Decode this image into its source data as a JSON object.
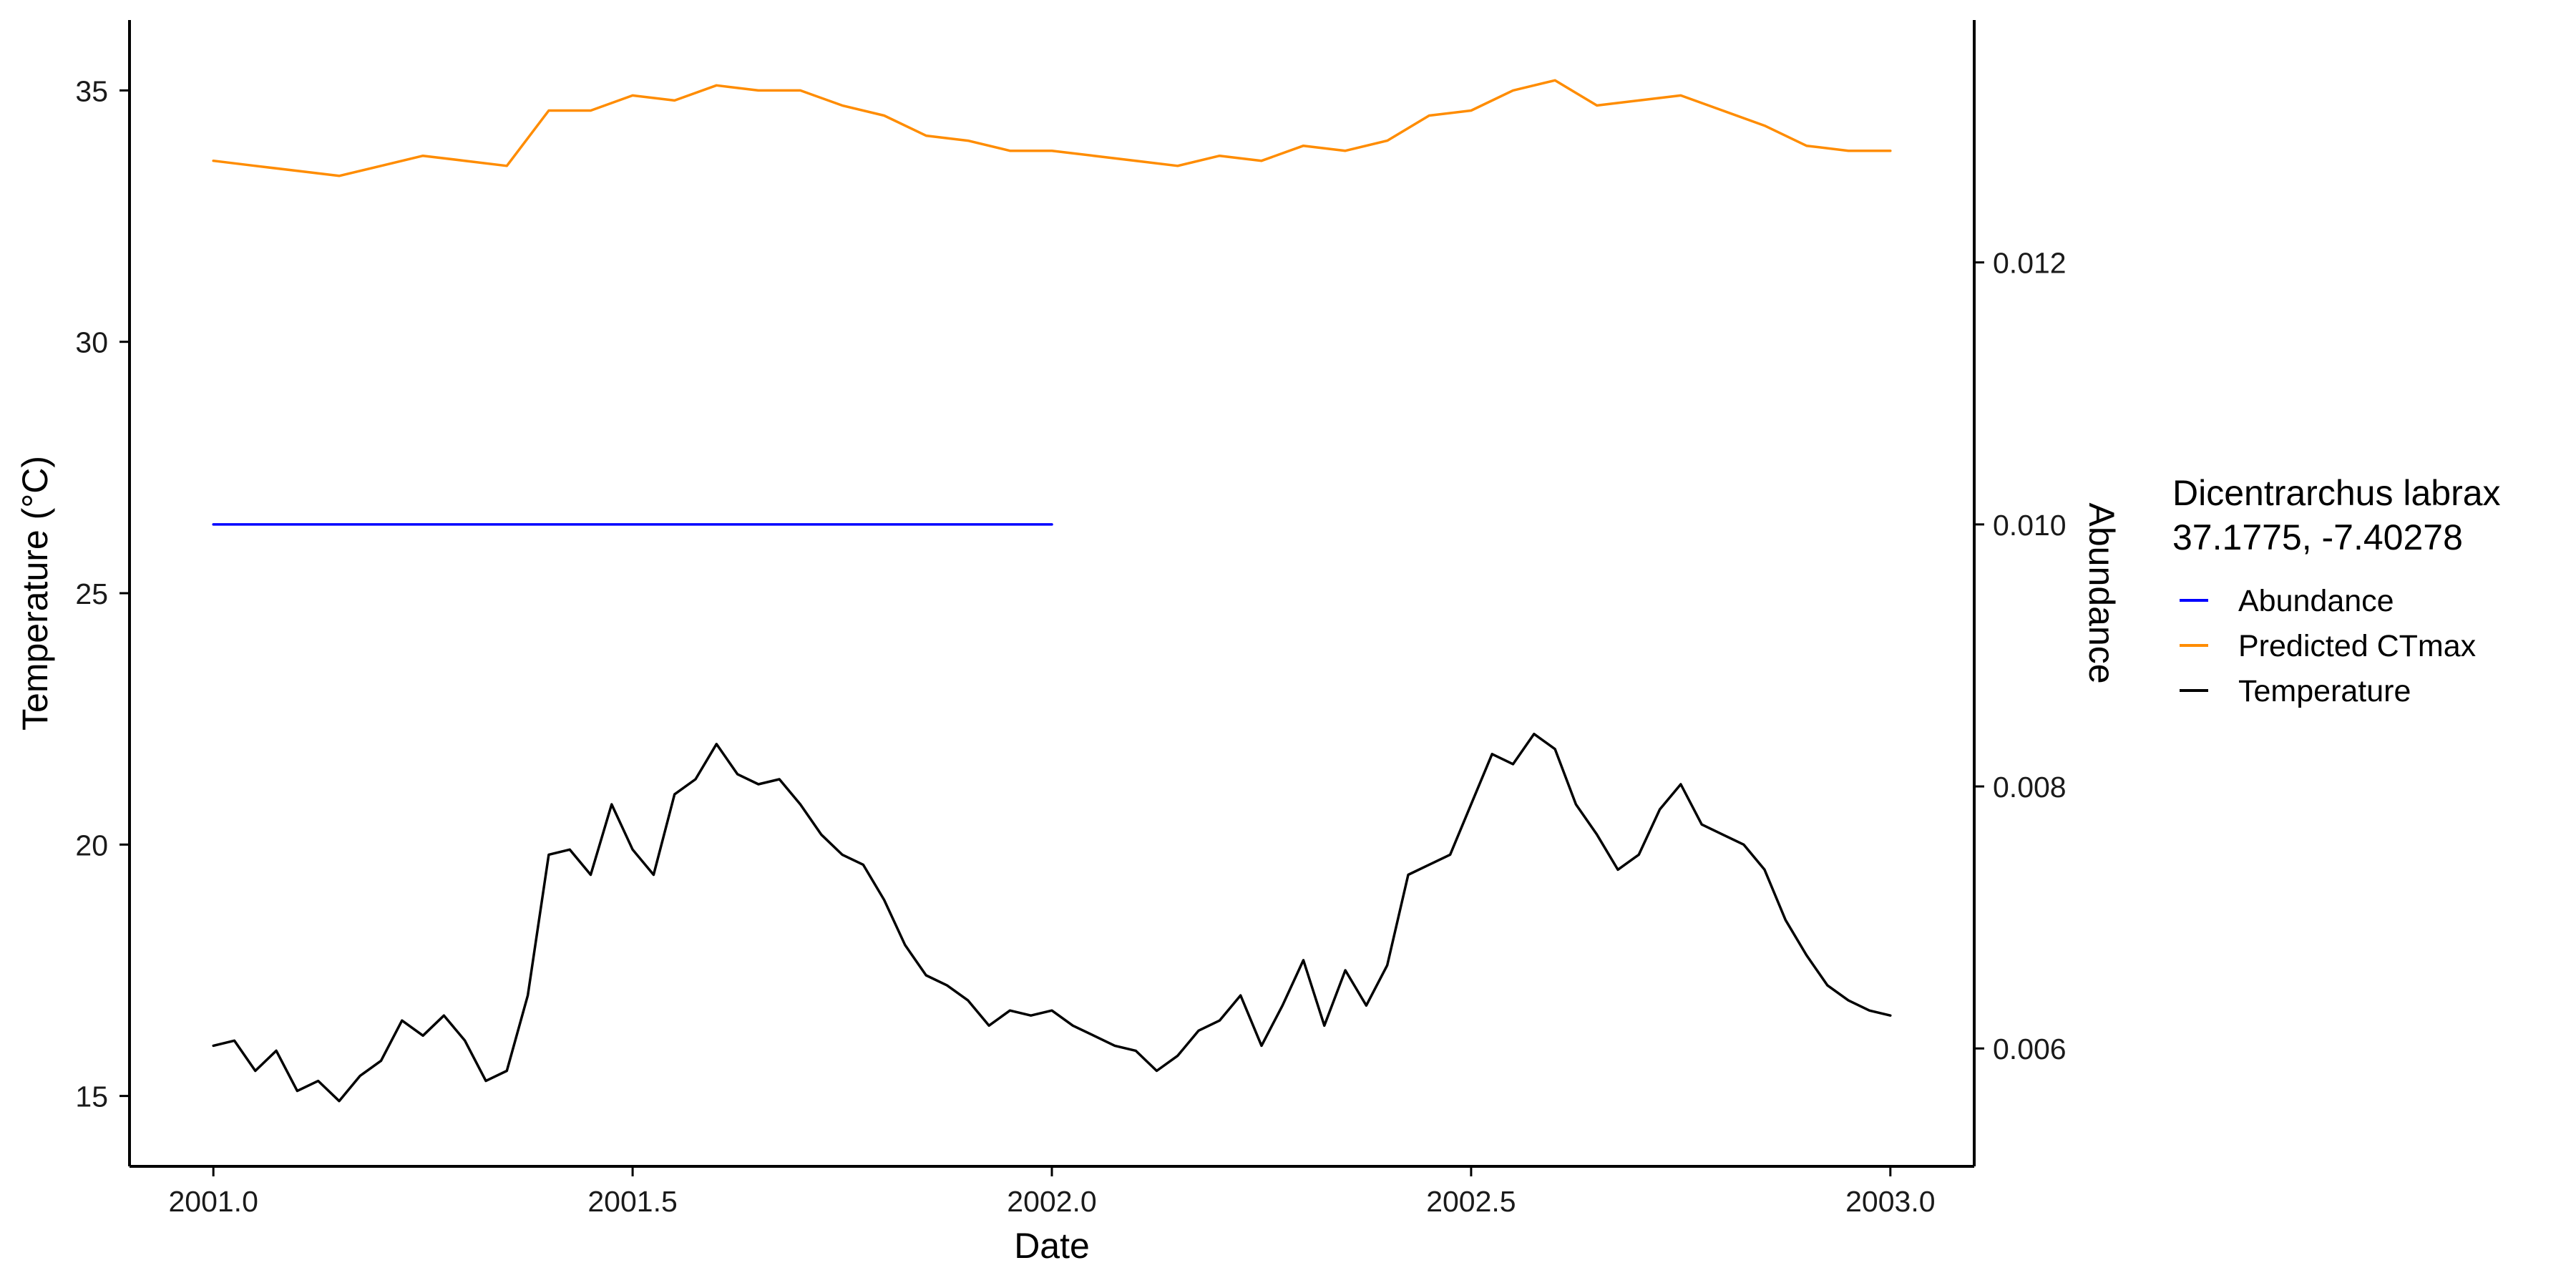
{
  "chart_data": {
    "type": "line",
    "xlabel": "Date",
    "ylabel_left": "Temperature (°C)",
    "ylabel_right": "Abundance",
    "ylabel_right_color": "#0000FF",
    "xlim": [
      2000.9,
      2003.1
    ],
    "ylim_left": [
      13.6,
      36.4
    ],
    "ylim_right": [
      0.0051,
      0.01385
    ],
    "x_ticks": [
      2001.0,
      2001.5,
      2002.0,
      2002.5,
      2003.0
    ],
    "x_tick_labels": [
      "2001.0",
      "2001.5",
      "2002.0",
      "2002.5",
      "2003.0"
    ],
    "y_left_ticks": [
      15,
      20,
      25,
      30,
      35
    ],
    "y_left_tick_labels": [
      "15",
      "20",
      "25",
      "30",
      "35"
    ],
    "y_right_ticks": [
      0.006,
      0.008,
      0.01,
      0.012
    ],
    "y_right_tick_labels": [
      "0.006",
      "0.008",
      "0.010",
      "0.012"
    ],
    "grid": false,
    "legend": {
      "title_line1": "Dicentrarchus labrax",
      "title_line2": "37.1775, -7.40278",
      "placement": "right",
      "entries": [
        {
          "label": "Abundance",
          "color": "#0000FF"
        },
        {
          "label": "Predicted CTmax",
          "color": "#FF8C00"
        },
        {
          "label": "Temperature",
          "color": "#000000"
        }
      ]
    },
    "series": [
      {
        "name": "Abundance",
        "axis": "right",
        "color": "#0000FF",
        "x": [
          2001.0,
          2002.0
        ],
        "y": [
          0.01,
          0.01
        ]
      },
      {
        "name": "Predicted CTmax",
        "axis": "left",
        "color": "#FF8C00",
        "x": [
          2001.0,
          2001.05,
          2001.1,
          2001.15,
          2001.2,
          2001.25,
          2001.3,
          2001.35,
          2001.4,
          2001.45,
          2001.5,
          2001.55,
          2001.6,
          2001.65,
          2001.7,
          2001.75,
          2001.8,
          2001.85,
          2001.9,
          2001.95,
          2002.0,
          2002.05,
          2002.1,
          2002.15,
          2002.2,
          2002.25,
          2002.3,
          2002.35,
          2002.4,
          2002.45,
          2002.5,
          2002.55,
          2002.6,
          2002.65,
          2002.7,
          2002.75,
          2002.8,
          2002.85,
          2002.9,
          2002.95,
          2003.0
        ],
        "y": [
          33.6,
          33.5,
          33.4,
          33.3,
          33.5,
          33.7,
          33.6,
          33.5,
          34.6,
          34.6,
          34.9,
          34.8,
          35.1,
          35.0,
          35.0,
          34.7,
          34.5,
          34.1,
          34.0,
          33.8,
          33.8,
          33.7,
          33.6,
          33.5,
          33.7,
          33.6,
          33.9,
          33.8,
          34.0,
          34.5,
          34.6,
          35.0,
          35.2,
          34.7,
          34.8,
          34.9,
          34.6,
          34.3,
          33.9,
          33.8,
          33.8
        ]
      },
      {
        "name": "Temperature",
        "axis": "left",
        "color": "#000000",
        "x": [
          2001.0,
          2001.025,
          2001.05,
          2001.075,
          2001.1,
          2001.125,
          2001.15,
          2001.175,
          2001.2,
          2001.225,
          2001.25,
          2001.275,
          2001.3,
          2001.325,
          2001.35,
          2001.375,
          2001.4,
          2001.425,
          2001.45,
          2001.475,
          2001.5,
          2001.525,
          2001.55,
          2001.575,
          2001.6,
          2001.625,
          2001.65,
          2001.675,
          2001.7,
          2001.725,
          2001.75,
          2001.775,
          2001.8,
          2001.825,
          2001.85,
          2001.875,
          2001.9,
          2001.925,
          2001.95,
          2001.975,
          2002.0,
          2002.025,
          2002.05,
          2002.075,
          2002.1,
          2002.125,
          2002.15,
          2002.175,
          2002.2,
          2002.225,
          2002.25,
          2002.275,
          2002.3,
          2002.325,
          2002.35,
          2002.375,
          2002.4,
          2002.425,
          2002.45,
          2002.475,
          2002.5,
          2002.525,
          2002.55,
          2002.575,
          2002.6,
          2002.625,
          2002.65,
          2002.675,
          2002.7,
          2002.725,
          2002.75,
          2002.775,
          2002.8,
          2002.825,
          2002.85,
          2002.875,
          2002.9,
          2002.925,
          2002.95,
          2002.975,
          2003.0
        ],
        "y": [
          16.0,
          16.1,
          15.5,
          15.9,
          15.1,
          15.3,
          14.9,
          15.4,
          15.7,
          16.5,
          16.2,
          16.6,
          16.1,
          15.3,
          15.5,
          17.0,
          19.8,
          19.9,
          19.4,
          20.8,
          19.9,
          19.4,
          21.0,
          21.3,
          22.0,
          21.4,
          21.2,
          21.3,
          20.8,
          20.2,
          19.8,
          19.6,
          18.9,
          18.0,
          17.4,
          17.2,
          16.9,
          16.4,
          16.7,
          16.6,
          16.7,
          16.4,
          16.2,
          16.0,
          15.9,
          15.5,
          15.8,
          16.3,
          16.5,
          17.0,
          16.0,
          16.8,
          17.7,
          16.4,
          17.5,
          16.8,
          17.6,
          19.4,
          19.6,
          19.8,
          20.8,
          21.8,
          21.6,
          22.2,
          21.9,
          20.8,
          20.2,
          19.5,
          19.8,
          20.7,
          21.2,
          20.4,
          20.2,
          20.0,
          19.5,
          18.5,
          17.8,
          17.2,
          16.9,
          16.7,
          16.6
        ]
      }
    ]
  }
}
